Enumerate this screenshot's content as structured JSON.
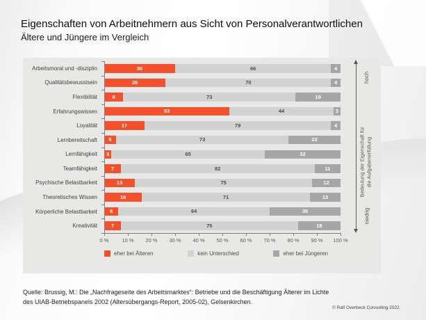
{
  "header": {
    "title": "Eigenschaften von Arbeitnehmern aus Sicht von Personalverantwortlichen",
    "subtitle": "Ältere und Jüngere im Vergleich"
  },
  "chart_data": {
    "type": "bar",
    "orientation": "horizontal",
    "stacked": true,
    "unit": "percent",
    "title": "Eigenschaften von Arbeitnehmern aus Sicht von Personalverantwortlichen",
    "subtitle": "Ältere und Jüngere im Vergleich",
    "categories": [
      "Arbeitsmoral und -disziplin",
      "Qualitätsbewusstsein",
      "Flexibilität",
      "Erfahrungswissen",
      "Loyalität",
      "Lernbereitschaft",
      "Lernfähigkeit",
      "Teamfähigkeit",
      "Psychische Belastbarkeit",
      "Theoretisches Wissen",
      "Körperliche Belastbarkeit",
      "Kreativität"
    ],
    "series": [
      {
        "name": "eher bei Älteren",
        "color": "#f4502b",
        "text_color": "#ffffff",
        "values": [
          30,
          26,
          8,
          53,
          17,
          5,
          3,
          7,
          13,
          16,
          6,
          7
        ]
      },
      {
        "name": "kein Unterschied",
        "color": "#d2d2d2",
        "text_color": "#4d4d4d",
        "values": [
          66,
          70,
          73,
          44,
          79,
          73,
          65,
          82,
          75,
          71,
          64,
          75
        ]
      },
      {
        "name": "eher bei Jüngeren",
        "color": "#a6a6a6",
        "text_color": "#ffffff",
        "values": [
          4,
          4,
          19,
          3,
          4,
          22,
          32,
          11,
          12,
          13,
          30,
          18
        ]
      }
    ],
    "xlim": [
      0,
      100
    ],
    "x_ticks": [
      "0 %",
      "10 %",
      "20 %",
      "30 %",
      "40 %",
      "50 %",
      "60 %",
      "70 %",
      "80 %",
      "90 %",
      "100 %"
    ],
    "legend_position": "bottom",
    "panel_background": "#e8e8e7",
    "right_axis": {
      "top_label": "hoch",
      "bottom_label": "niedrig",
      "label_line1": "Bedeutung der Eigenschaft für",
      "label_line2": "die Aufgabenerfüllung"
    }
  },
  "footer": {
    "source_line1": "Quelle: Brussig, M.: Die „Nachfrageseite des Arbeitsmarktes“: Betriebe und die Beschäftigung Älterer im Lichte",
    "source_line2": "des UIAB-Betriebspanels 2002 (Altersübergangs-Report, 2005-02), Gelsenkirchen.",
    "copyright": "© Ralf Overbeck Consulting 2022"
  }
}
